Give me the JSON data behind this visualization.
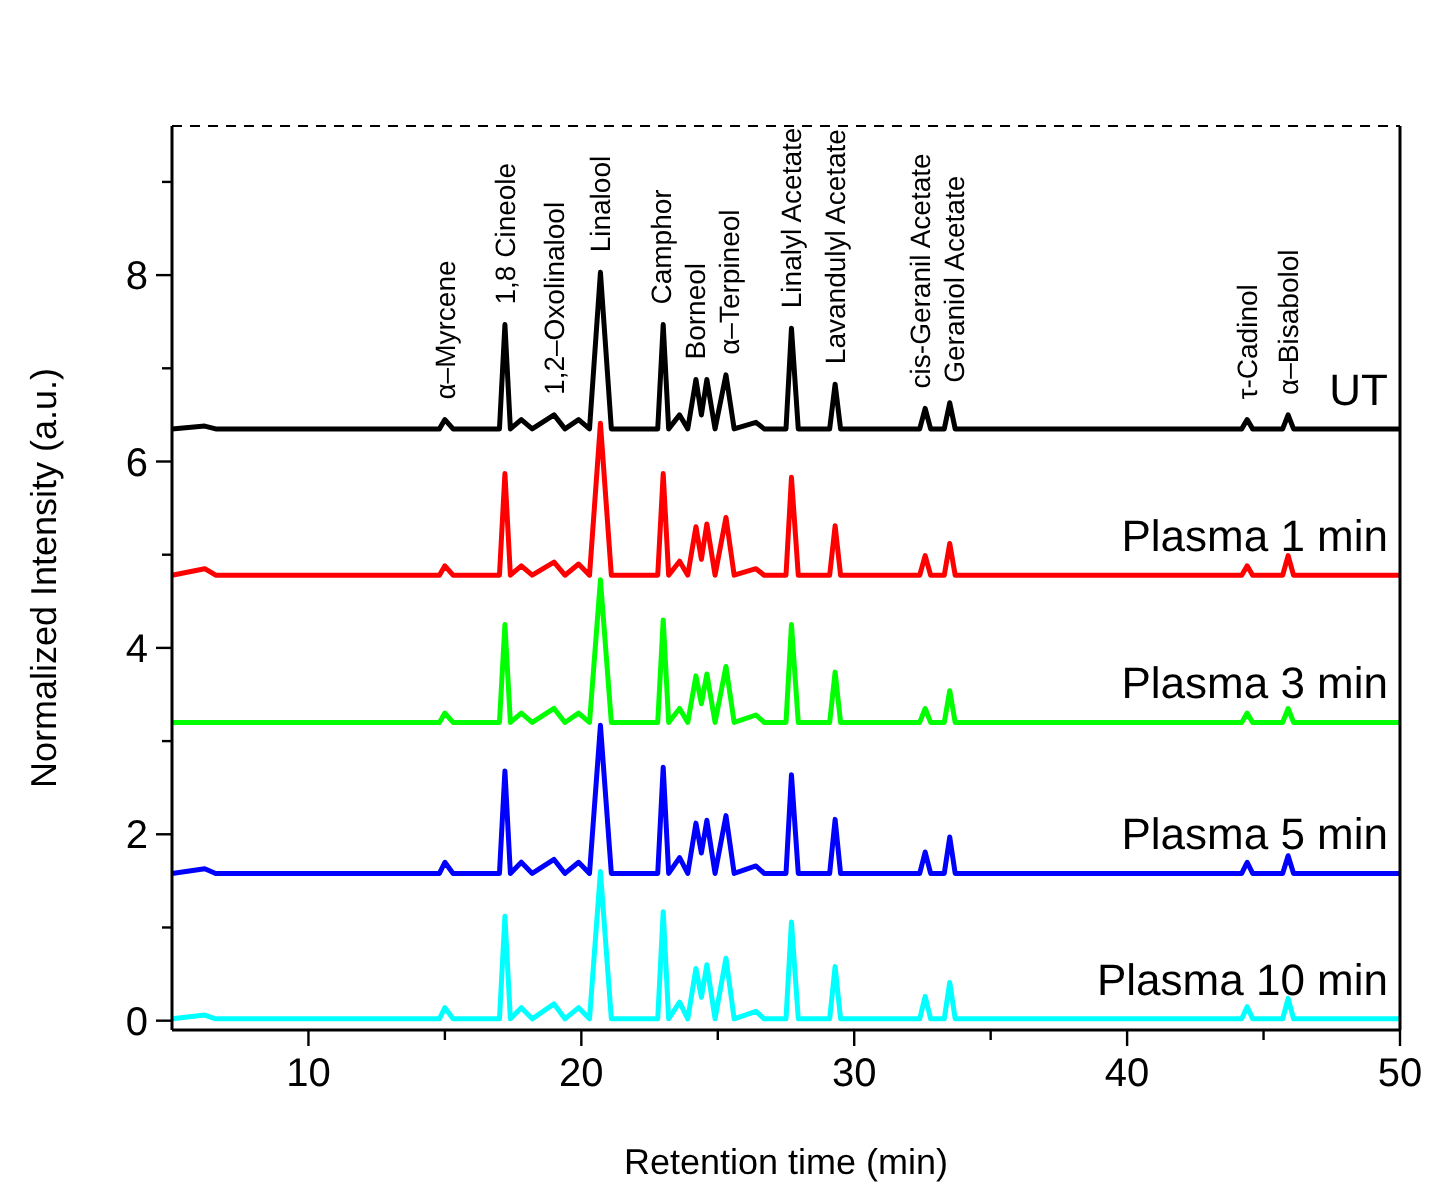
{
  "chart_data": {
    "type": "line",
    "xlabel": "Retention time (min)",
    "ylabel": "Normalized Intensity (a.u.)",
    "xlim": [
      5,
      50
    ],
    "ylim": [
      -0.1,
      9.6
    ],
    "xticks": [
      10,
      {
        "value": 15,
        "label": null
      },
      20,
      {
        "value": 25,
        "label": null
      },
      30,
      {
        "value": 35,
        "label": null
      },
      40,
      {
        "value": 45,
        "label": null
      },
      50
    ],
    "yticks": [
      0,
      {
        "value": 1,
        "label": null
      },
      2,
      {
        "value": 3,
        "label": null
      },
      4,
      {
        "value": 5,
        "label": null
      },
      6,
      {
        "value": 7,
        "label": null
      },
      8,
      {
        "value": 9,
        "label": null
      }
    ],
    "grid": false,
    "marker": "none",
    "line_style": "solid",
    "x": [
      5,
      6.2,
      6.6,
      14.8,
      15.0,
      15.3,
      17.0,
      17.2,
      17.4,
      17.8,
      18.2,
      19.0,
      19.4,
      19.9,
      20.3,
      20.7,
      21.1,
      22.8,
      23.0,
      23.2,
      23.6,
      23.9,
      24.2,
      24.4,
      24.6,
      24.9,
      25.3,
      25.6,
      26.4,
      26.7,
      27.5,
      27.7,
      27.95,
      29.1,
      29.3,
      29.5,
      32.4,
      32.6,
      32.8,
      33.3,
      33.5,
      33.7,
      44.2,
      44.4,
      44.6,
      45.7,
      45.9,
      46.1,
      50
    ],
    "series": [
      {
        "name": "UT",
        "color": "#000000",
        "values": [
          6.35,
          6.38,
          6.35,
          6.35,
          6.45,
          6.35,
          6.35,
          7.47,
          6.35,
          6.45,
          6.35,
          6.5,
          6.35,
          6.45,
          6.35,
          8.03,
          6.35,
          6.35,
          7.47,
          6.35,
          6.5,
          6.35,
          6.88,
          6.5,
          6.88,
          6.35,
          6.93,
          6.35,
          6.42,
          6.35,
          6.35,
          7.43,
          6.35,
          6.35,
          6.83,
          6.35,
          6.35,
          6.57,
          6.35,
          6.35,
          6.63,
          6.35,
          6.35,
          6.45,
          6.35,
          6.35,
          6.5,
          6.35,
          6.35
        ]
      },
      {
        "name": "Plasma 1 min",
        "color": "#ff0000",
        "values": [
          4.78,
          4.85,
          4.78,
          4.78,
          4.88,
          4.78,
          4.78,
          5.87,
          4.78,
          4.88,
          4.78,
          4.92,
          4.78,
          4.9,
          4.78,
          6.41,
          4.78,
          4.78,
          5.87,
          4.78,
          4.93,
          4.78,
          5.3,
          4.95,
          5.33,
          4.78,
          5.4,
          4.78,
          4.85,
          4.78,
          4.78,
          5.83,
          4.78,
          4.78,
          5.31,
          4.78,
          4.78,
          4.99,
          4.78,
          4.78,
          5.12,
          4.78,
          4.78,
          4.88,
          4.78,
          4.78,
          4.99,
          4.78,
          4.78
        ]
      },
      {
        "name": "Plasma 3 min",
        "color": "#00ff00",
        "values": [
          3.2,
          3.2,
          3.2,
          3.2,
          3.3,
          3.2,
          3.2,
          4.25,
          3.2,
          3.3,
          3.2,
          3.35,
          3.2,
          3.3,
          3.2,
          4.73,
          3.2,
          3.2,
          4.3,
          3.2,
          3.35,
          3.2,
          3.7,
          3.4,
          3.72,
          3.2,
          3.8,
          3.2,
          3.28,
          3.2,
          3.2,
          4.25,
          3.2,
          3.2,
          3.74,
          3.2,
          3.2,
          3.35,
          3.2,
          3.2,
          3.54,
          3.2,
          3.2,
          3.3,
          3.2,
          3.2,
          3.35,
          3.2,
          3.2
        ]
      },
      {
        "name": "Plasma 5 min",
        "color": "#0000ff",
        "values": [
          1.58,
          1.63,
          1.58,
          1.58,
          1.7,
          1.58,
          1.58,
          2.68,
          1.58,
          1.7,
          1.58,
          1.73,
          1.58,
          1.7,
          1.58,
          3.17,
          1.58,
          1.58,
          2.72,
          1.58,
          1.75,
          1.58,
          2.12,
          1.8,
          2.15,
          1.58,
          2.2,
          1.58,
          1.66,
          1.58,
          1.58,
          2.64,
          1.58,
          1.58,
          2.16,
          1.58,
          1.58,
          1.81,
          1.58,
          1.58,
          1.97,
          1.58,
          1.58,
          1.7,
          1.58,
          1.58,
          1.77,
          1.58,
          1.58
        ]
      },
      {
        "name": "Plasma 10 min",
        "color": "#00ffff",
        "values": [
          0.02,
          0.06,
          0.02,
          0.02,
          0.14,
          0.02,
          0.02,
          1.12,
          0.02,
          0.14,
          0.02,
          0.18,
          0.02,
          0.14,
          0.02,
          1.6,
          0.02,
          0.02,
          1.17,
          0.02,
          0.2,
          0.02,
          0.56,
          0.25,
          0.6,
          0.02,
          0.67,
          0.02,
          0.1,
          0.02,
          0.02,
          1.06,
          0.02,
          0.02,
          0.58,
          0.02,
          0.02,
          0.26,
          0.02,
          0.02,
          0.41,
          0.02,
          0.02,
          0.15,
          0.02,
          0.02,
          0.24,
          0.02,
          0.02
        ]
      }
    ],
    "annotations": [
      {
        "text": "α–Myrcene",
        "x": 15.0,
        "y": 6.45
      },
      {
        "text": "1,8 Cineole",
        "x": 17.2,
        "y": 7.47
      },
      {
        "text": "1,2–Oxolinalool",
        "x": 19.0,
        "y": 6.5
      },
      {
        "text": "Linalool",
        "x": 20.7,
        "y": 8.03
      },
      {
        "text": "Camphor",
        "x": 23.0,
        "y": 7.47
      },
      {
        "text": "Borneol",
        "x": 24.2,
        "y": 6.88
      },
      {
        "text": "α–Terpineol",
        "x": 25.3,
        "y": 6.93
      },
      {
        "text": "Linalyl Acetate",
        "x": 27.7,
        "y": 7.43
      },
      {
        "text": "Lavandulyl Acetate",
        "x": 29.3,
        "y": 6.83
      },
      {
        "text": "cis-Geranil Acetate",
        "x": 32.6,
        "y": 6.57
      },
      {
        "text": "Geraniol Acetate",
        "x": 33.5,
        "y": 6.63
      },
      {
        "text": "τ-Cadinol",
        "x": 44.4,
        "y": 6.45
      },
      {
        "text": "α–Bisabolol",
        "x": 45.9,
        "y": 6.5
      }
    ]
  }
}
